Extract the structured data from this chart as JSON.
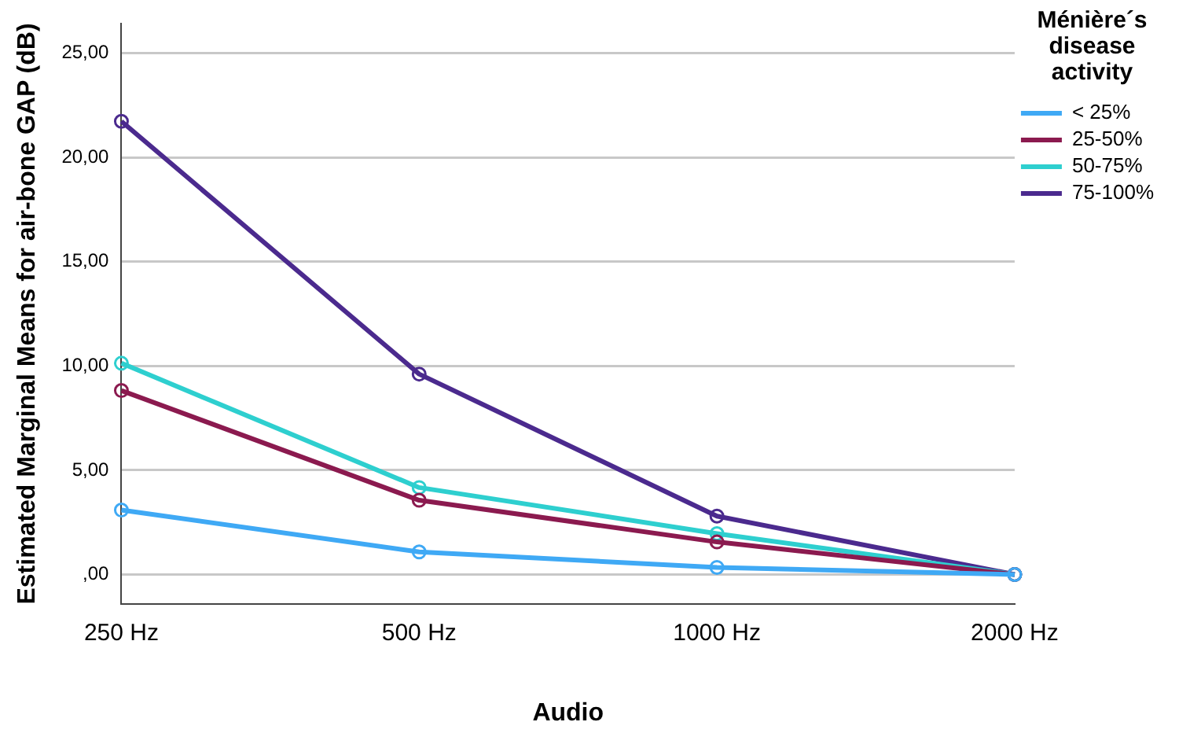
{
  "chart_data": {
    "type": "line",
    "xlabel": "Audio",
    "ylabel": "Estimated Marginal Means for air-bone GAP (dB)",
    "legend_title": "Ménière´s disease activity",
    "categories": [
      "250 Hz",
      "500 Hz",
      "1000 Hz",
      "2000 Hz"
    ],
    "series": [
      {
        "name": "< 25%",
        "color": "#3fa9f5",
        "values": [
          3.09,
          1.08,
          0.34,
          0.0
        ]
      },
      {
        "name": "25-50%",
        "color": "#8b1a4f",
        "values": [
          8.82,
          3.56,
          1.56,
          0.0
        ]
      },
      {
        "name": "50-75%",
        "color": "#2ecfcf",
        "values": [
          10.13,
          4.17,
          1.96,
          0.0
        ]
      },
      {
        "name": "75-100%",
        "color": "#4b2a8e",
        "values": [
          21.73,
          9.61,
          2.8,
          0.0
        ]
      }
    ],
    "ylim": [
      -1.4,
      26.4
    ],
    "yticks": [
      {
        "value": 0,
        "label": ",00"
      },
      {
        "value": 5,
        "label": "5,00"
      },
      {
        "value": 10,
        "label": "10,00"
      },
      {
        "value": 15,
        "label": "15,00"
      },
      {
        "value": 20,
        "label": "20,00"
      },
      {
        "value": 25,
        "label": "25,00"
      }
    ],
    "grid": "y",
    "legend": "top right",
    "marker": "circle",
    "line_style": "solid"
  }
}
